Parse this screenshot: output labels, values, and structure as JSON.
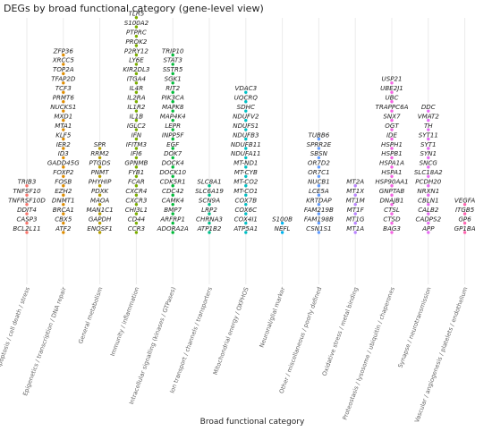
{
  "chart_data": {
    "type": "scatter",
    "title": "DEGs by broad functional category (gene-level view)",
    "xlabel": "Broad functional category",
    "ylabel": "",
    "grid": true,
    "legend": "none",
    "categories": [
      {
        "name": "Apoptosis / cell death / stress",
        "color": "#F8766D",
        "genes": [
          "BCL2L11",
          "CASP3",
          "DDIT4",
          "TNFRSF10D",
          "TNFSF10",
          "TRIB3"
        ]
      },
      {
        "name": "Epigenetics / transcription / DNA repair",
        "color": "#DE8C00",
        "genes": [
          "ATF2",
          "CBX5",
          "BRCA1",
          "DNMT1",
          "EZH2",
          "FOSB",
          "FOXP2",
          "GADD45G",
          "ID3",
          "IER2",
          "KLF5",
          "MTA1",
          "MXD1",
          "NUCKS1",
          "PRMT6",
          "TCF3",
          "TFAP2D",
          "TOP2A",
          "XRCC5",
          "ZFP36"
        ]
      },
      {
        "name": "General metabolism",
        "color": "#B79F00",
        "genes": [
          "ENOSF1",
          "GAPDH",
          "MAN1C1",
          "MAOA",
          "PDXK",
          "PHYHIP",
          "PNMT",
          "PTGDS",
          "RRM2",
          "SPR"
        ]
      },
      {
        "name": "Immunity / inflammation",
        "color": "#7CAE00",
        "genes": [
          "CCR3",
          "CD44",
          "CHI3L1",
          "CXCR3",
          "CXCR4",
          "FCAR",
          "FYB1",
          "GPNMB",
          "IFI6",
          "IFITM3",
          "IFN",
          "IGLC2",
          "IL1B",
          "IL1R2",
          "IL2RA",
          "IL4R",
          "ITGA4",
          "KIR2DL3",
          "LY6E",
          "P2RY12",
          "PROK2",
          "PTPRC",
          "S100A2",
          "TLR5"
        ]
      },
      {
        "name": "Intracellular signalling (kinases / GTPases)",
        "color": "#00BA38",
        "genes": [
          "ADORA2A",
          "ARFRP1",
          "BMP7",
          "CAMK4",
          "CDC42",
          "CDK5R1",
          "DOCK10",
          "DOCK4",
          "DOK7",
          "EGF",
          "INPP5F",
          "LEPR",
          "MAP4K4",
          "MAPK8",
          "PIK3CA",
          "RIT2",
          "SGK1",
          "SSTR5",
          "STAT3",
          "TRIP10"
        ]
      },
      {
        "name": "Ion transport / channels / transporters",
        "color": "#00C08B",
        "genes": [
          "ATP1B2",
          "CHRNA3",
          "LRP2",
          "SCN9A",
          "SLC6A19",
          "SLC8A1"
        ]
      },
      {
        "name": "Mitochondrial energy / OXPHOS",
        "color": "#00BFC4",
        "genes": [
          "ATP5A1",
          "COX4I1",
          "COX6C",
          "COX7B",
          "MT-CO1",
          "MT-CO2",
          "MT-CYB",
          "MT-ND1",
          "NDUFA11",
          "NDUFB11",
          "NDUFB3",
          "NDUFS1",
          "NDUFV2",
          "SDHC",
          "UQCRQ",
          "VDAC3"
        ]
      },
      {
        "name": "Neuronal/glial marker",
        "color": "#00B4F0",
        "genes": [
          "NEFL",
          "S100B"
        ]
      },
      {
        "name": "Other / miscellaneous / poorly defined",
        "color": "#619CFF",
        "genes": [
          "CSN1S1",
          "FAM198B",
          "FAM219B",
          "KRTDAP",
          "LCE5A",
          "NUCB1",
          "OR7C1",
          "OR7D2",
          "SBSN",
          "SPRR2E",
          "TUBB6"
        ]
      },
      {
        "name": "Oxidative stress / metal binding",
        "color": "#B983FF",
        "genes": [
          "MT1A",
          "MT1G",
          "MT1F",
          "MT1M",
          "MT1X",
          "MT2A"
        ]
      },
      {
        "name": "Proteostasis / lysosome / ubiquitin / chaperones",
        "color": "#F564E3",
        "genes": [
          "BAG3",
          "CTSD",
          "CTSL",
          "DNAJB1",
          "GNPTAB",
          "HSP90AA1",
          "HSPA1",
          "HSPA1A",
          "HSPB1",
          "HSPH1",
          "IDE",
          "OGT",
          "SNX7",
          "TRAPPC6A",
          "UBC",
          "UBE2J1",
          "USP21"
        ]
      },
      {
        "name": "Synapse / neurotransmission",
        "color": "#E76BF3",
        "genes": [
          "APP",
          "CADPS2",
          "CALB2",
          "CBLN1",
          "NRXN1",
          "PCDH20",
          "SLC18A2",
          "SNCG",
          "SYN1",
          "SYT1",
          "SYT11",
          "TH",
          "VMAT2",
          "DDC"
        ]
      },
      {
        "name": "Vascular / angiogenesis / platelets / endothelium",
        "color": "#FF64B0",
        "genes": [
          "GP1BA",
          "GP6",
          "ITGB5",
          "VEGFA"
        ]
      }
    ]
  }
}
